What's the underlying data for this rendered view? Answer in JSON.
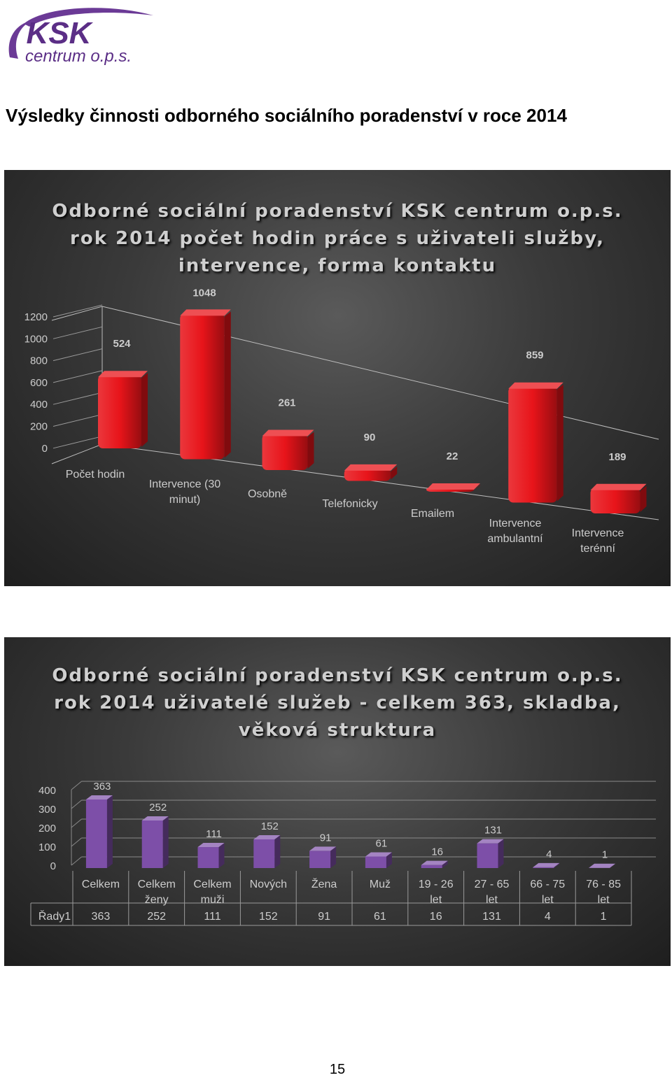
{
  "logo": {
    "text": "KSK",
    "subtext": "centrum o.p.s."
  },
  "heading": "Výsledky činnosti odborného sociálního poradenství v roce 2014",
  "page_number": "15",
  "colors": {
    "bar1": "#e8141a",
    "bar2": "#7d4fa8",
    "label": "#cccccc"
  },
  "chart_data": [
    {
      "type": "bar",
      "title_lines": [
        "Odborné sociální poradenství KSK centrum o.p.s.",
        "rok 2014 počet hodin práce s uživateli služby,",
        "intervence, forma kontaktu"
      ],
      "categories": [
        [
          "Počet hodin"
        ],
        [
          "Intervence (30",
          "minut)"
        ],
        [
          "Osobně"
        ],
        [
          "Telefonicky"
        ],
        [
          "Emailem"
        ],
        [
          "Intervence",
          "ambulantní"
        ],
        [
          "Intervence",
          "terénní"
        ]
      ],
      "values": [
        524,
        1048,
        261,
        90,
        22,
        859,
        189
      ],
      "yticks": [
        "1200",
        "1000",
        "800",
        "600",
        "400",
        "200",
        "0"
      ],
      "ylim": [
        0,
        1200
      ],
      "grid": false,
      "three_d": true
    },
    {
      "type": "bar",
      "title_lines": [
        "Odborné sociální poradenství KSK centrum o.p.s.",
        "rok 2014 uživatelé služeb - celkem 363, skladba,",
        "věková struktura"
      ],
      "categories": [
        [
          "Celkem"
        ],
        [
          "Celkem",
          "ženy"
        ],
        [
          "Celkem",
          "muži"
        ],
        [
          "Nových"
        ],
        [
          "Žena"
        ],
        [
          "Muž"
        ],
        [
          "19 - 26",
          "let"
        ],
        [
          "27 - 65",
          "let"
        ],
        [
          "66 - 75",
          "let"
        ],
        [
          "76 - 85",
          "let"
        ]
      ],
      "series": [
        {
          "name": "Řady1",
          "values": [
            363,
            252,
            111,
            152,
            91,
            61,
            16,
            131,
            4,
            1
          ]
        }
      ],
      "value_labels": [
        "363",
        "252",
        "111",
        "152",
        "91",
        "61",
        "16",
        "131",
        "4",
        "1"
      ],
      "yticks": [
        "400",
        "300",
        "200",
        "100",
        "0"
      ],
      "ylim": [
        0,
        400
      ],
      "grid": true,
      "data_table": true,
      "three_d": true
    }
  ]
}
